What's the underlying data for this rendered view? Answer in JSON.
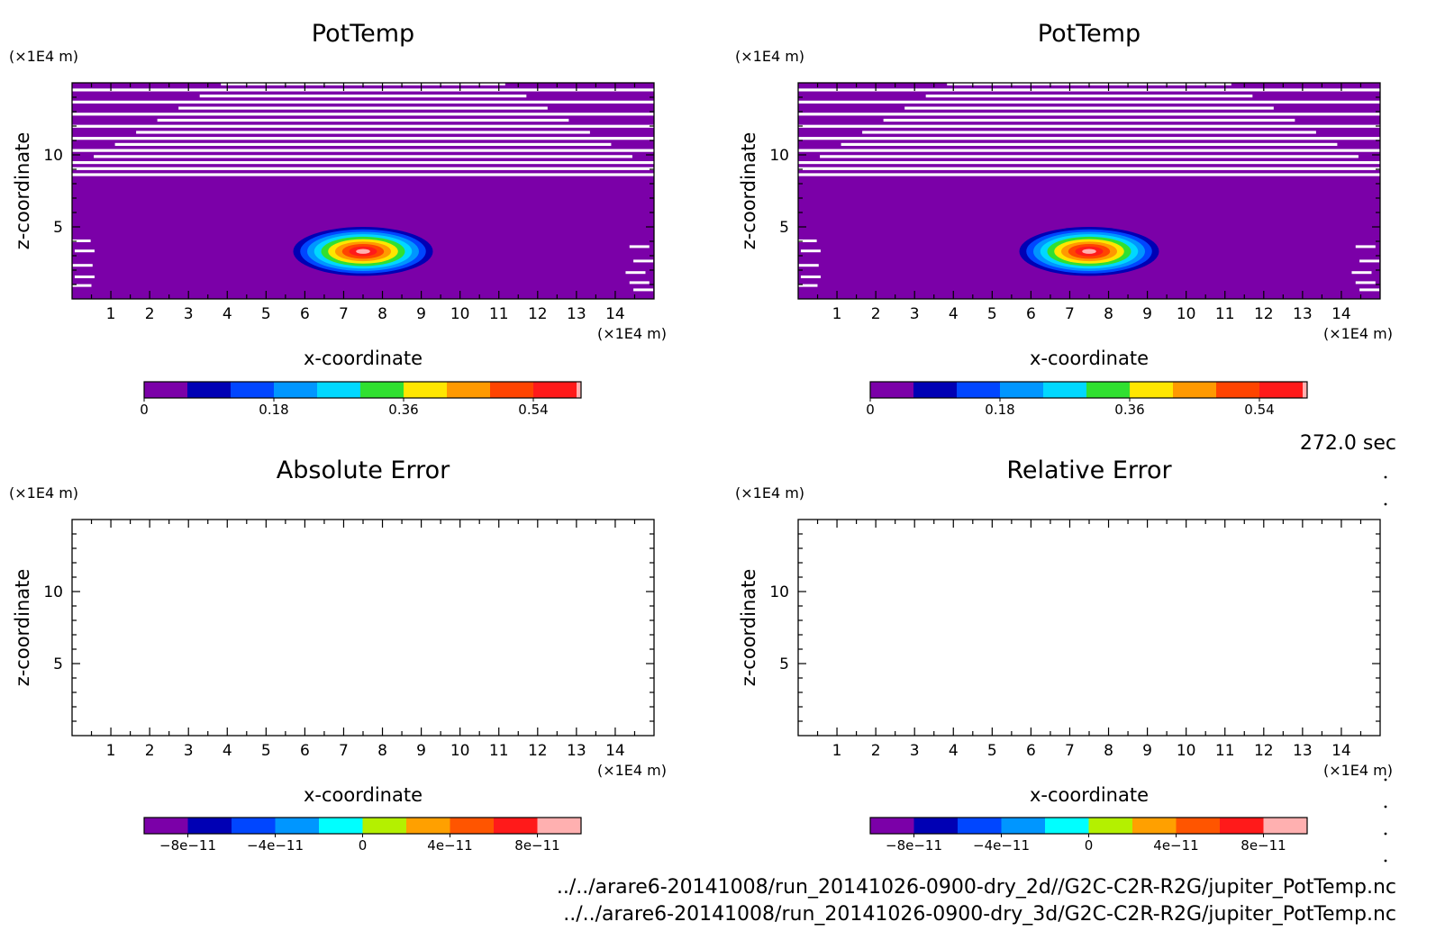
{
  "chart_data": [
    {
      "type": "heatmap",
      "title": "PotTemp",
      "xlabel": "x-coordinate",
      "ylabel": "z-coordinate",
      "x_unit": "(×1E4 m)",
      "z_unit": "(×1E4 m)",
      "xlim": [
        0,
        15
      ],
      "zlim": [
        0,
        15
      ],
      "x_ticks": [
        "1",
        "2",
        "3",
        "4",
        "5",
        "6",
        "7",
        "8",
        "9",
        "10",
        "11",
        "12",
        "13",
        "14"
      ],
      "z_ticks": [
        "5",
        "10"
      ],
      "colorbar": {
        "levels": [
          0,
          0.06,
          0.12,
          0.18,
          0.24,
          0.3,
          0.36,
          0.42,
          0.48,
          0.54,
          0.6
        ],
        "tick_labels": [
          "0",
          "0.18",
          "0.36",
          "0.54"
        ],
        "colors": [
          "#7b00a8",
          "#0000b4",
          "#0046ff",
          "#0096ff",
          "#00d8ff",
          "#30e030",
          "#ffe600",
          "#ff9900",
          "#ff4400",
          "#ff1a1a",
          "#ffb0b0"
        ]
      },
      "bubble": {
        "center_x": 7.5,
        "center_z": 3.3,
        "half_width_x": 1.8,
        "half_height_z": 1.7,
        "peak": 0.6
      }
    },
    {
      "type": "heatmap",
      "title": "PotTemp",
      "xlabel": "x-coordinate",
      "ylabel": "z-coordinate",
      "x_unit": "(×1E4 m)",
      "z_unit": "(×1E4 m)",
      "xlim": [
        0,
        15
      ],
      "zlim": [
        0,
        15
      ],
      "x_ticks": [
        "1",
        "2",
        "3",
        "4",
        "5",
        "6",
        "7",
        "8",
        "9",
        "10",
        "11",
        "12",
        "13",
        "14"
      ],
      "z_ticks": [
        "5",
        "10"
      ],
      "colorbar": {
        "levels": [
          0,
          0.06,
          0.12,
          0.18,
          0.24,
          0.3,
          0.36,
          0.42,
          0.48,
          0.54,
          0.6
        ],
        "tick_labels": [
          "0",
          "0.18",
          "0.36",
          "0.54"
        ],
        "colors": [
          "#7b00a8",
          "#0000b4",
          "#0046ff",
          "#0096ff",
          "#00d8ff",
          "#30e030",
          "#ffe600",
          "#ff9900",
          "#ff4400",
          "#ff1a1a",
          "#ffb0b0"
        ]
      },
      "bubble": {
        "center_x": 7.5,
        "center_z": 3.3,
        "half_width_x": 1.8,
        "half_height_z": 1.7,
        "peak": 0.6
      }
    },
    {
      "type": "heatmap",
      "title": "Absolute Error",
      "xlabel": "x-coordinate",
      "ylabel": "z-coordinate",
      "x_unit": "(×1E4 m)",
      "z_unit": "(×1E4 m)",
      "xlim": [
        0,
        15
      ],
      "zlim": [
        0,
        15
      ],
      "x_ticks": [
        "1",
        "2",
        "3",
        "4",
        "5",
        "6",
        "7",
        "8",
        "9",
        "10",
        "11",
        "12",
        "13",
        "14"
      ],
      "z_ticks": [
        "5",
        "10"
      ],
      "colorbar": {
        "tick_labels": [
          "−8e−11",
          "−4e−11",
          "0",
          "4e−11",
          "8e−11"
        ],
        "colors": [
          "#7b00a8",
          "#0000b4",
          "#0046ff",
          "#0096ff",
          "#00ffff",
          "#b4f000",
          "#ffa000",
          "#ff5500",
          "#ff1a1a",
          "#ffb0b0"
        ]
      },
      "values": []
    },
    {
      "type": "heatmap",
      "title": "Relative Error",
      "xlabel": "x-coordinate",
      "ylabel": "z-coordinate",
      "x_unit": "(×1E4 m)",
      "z_unit": "(×1E4 m)",
      "xlim": [
        0,
        15
      ],
      "zlim": [
        0,
        15
      ],
      "x_ticks": [
        "1",
        "2",
        "3",
        "4",
        "5",
        "6",
        "7",
        "8",
        "9",
        "10",
        "11",
        "12",
        "13",
        "14"
      ],
      "z_ticks": [
        "5",
        "10"
      ],
      "colorbar": {
        "tick_labels": [
          "−8e−11",
          "−4e−11",
          "0",
          "4e−11",
          "8e−11"
        ],
        "colors": [
          "#7b00a8",
          "#0000b4",
          "#0046ff",
          "#0096ff",
          "#00ffff",
          "#b4f000",
          "#ffa000",
          "#ff5500",
          "#ff1a1a",
          "#ffb0b0"
        ]
      },
      "values": []
    }
  ],
  "time_label": "272.0 sec",
  "files": [
    "../../arare6-20141008/run_20141026-0900-dry_2d//G2C-C2R-R2G/jupiter_PotTemp.nc",
    "../../arare6-20141008/run_20141026-0900-dry_3d/G2C-C2R-R2G/jupiter_PotTemp.nc"
  ]
}
